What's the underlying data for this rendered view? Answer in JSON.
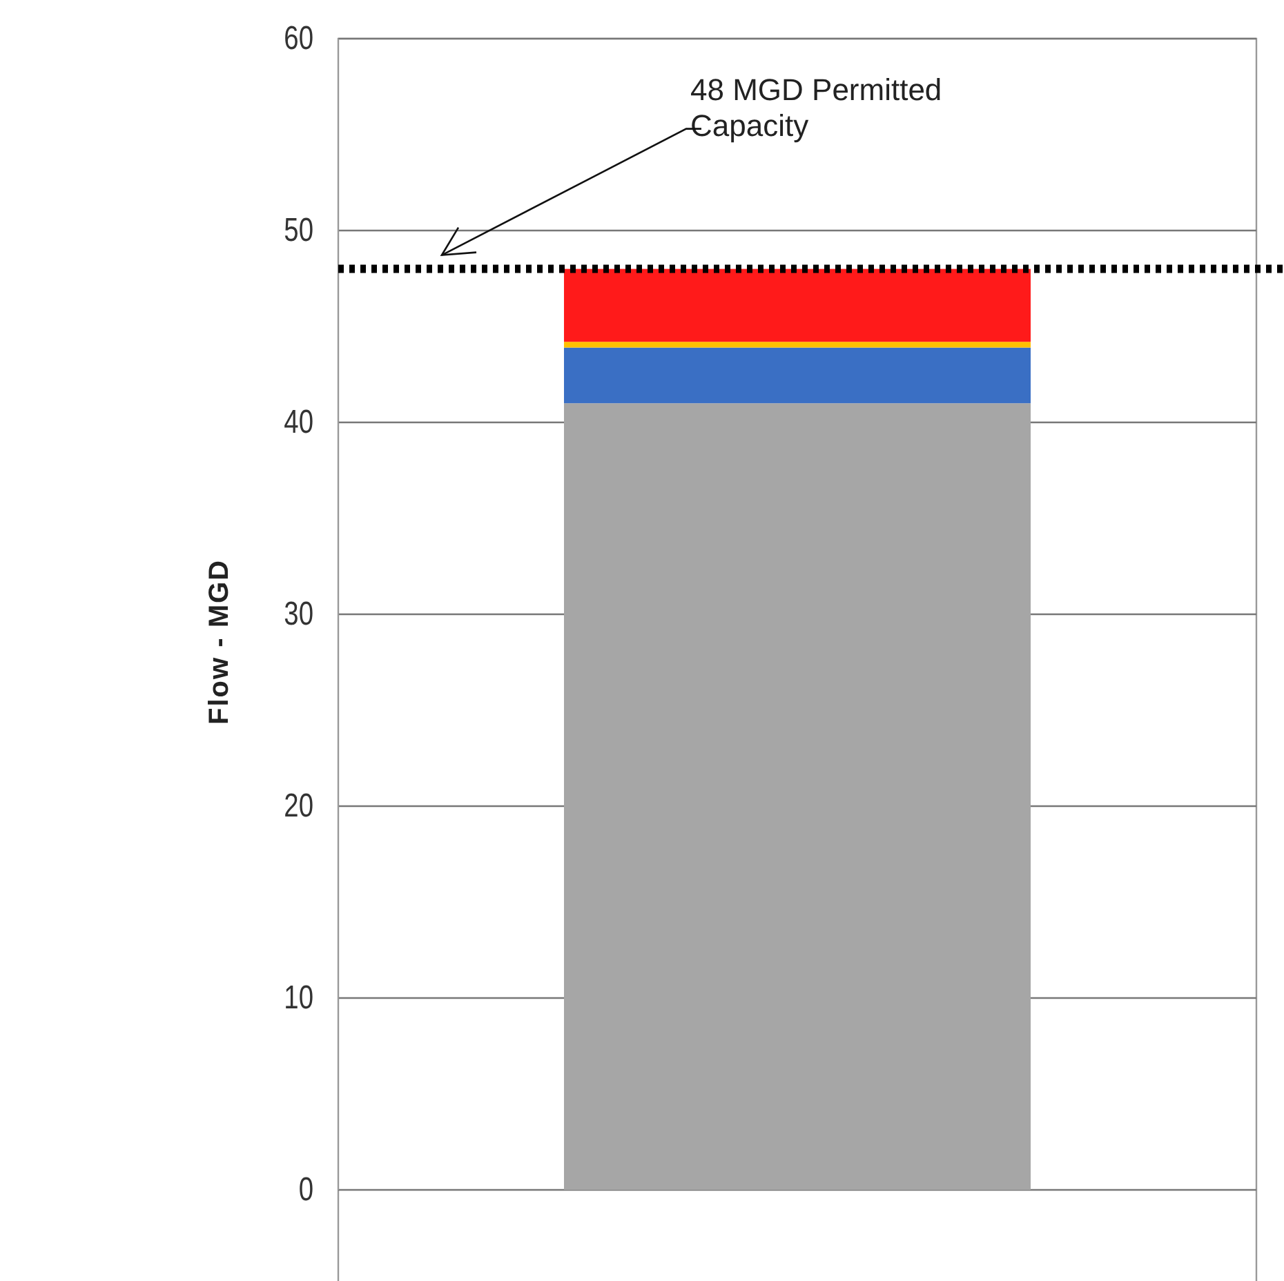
{
  "chart_data": {
    "type": "bar",
    "ylabel": "Flow - MGD",
    "categories": [
      null
    ],
    "stacked": true,
    "series": [
      {
        "color": "#a6a6a6",
        "values": [
          41.0
        ]
      },
      {
        "color": "#3a6fc4",
        "values": [
          2.9
        ]
      },
      {
        "color": "#ffc000",
        "values": [
          0.3
        ]
      },
      {
        "color": "#ff1a1a",
        "values": [
          3.8
        ]
      }
    ],
    "ylim": [
      0,
      60
    ],
    "yticks": [
      0,
      10,
      20,
      30,
      40,
      50,
      60
    ],
    "grid": "y",
    "ref_lines": [
      {
        "axis": "y",
        "value": 48,
        "label": "48 MGD Permitted Capacity",
        "line_style": "dotted",
        "color": "#000000"
      }
    ]
  }
}
